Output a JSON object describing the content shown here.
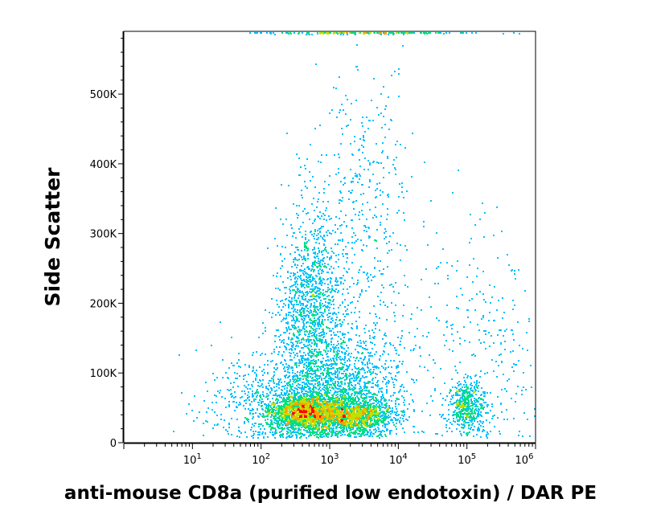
{
  "chart_data": {
    "type": "scatter",
    "subtype": "flow-cytometry density dot plot",
    "xlabel": "anti-mouse CD8a (purified low endotoxin) / DAR PE",
    "ylabel": "Side Scatter",
    "x_scale": "log",
    "xlim": [
      1,
      1000000
    ],
    "ylim": [
      0,
      590000
    ],
    "y_ticks": [
      {
        "value": 0,
        "label": "0"
      },
      {
        "value": 100000,
        "label": "100K"
      },
      {
        "value": 200000,
        "label": "200K"
      },
      {
        "value": 300000,
        "label": "300K"
      },
      {
        "value": 400000,
        "label": "400K"
      },
      {
        "value": 500000,
        "label": "500K"
      }
    ],
    "x_ticks": [
      {
        "value": 10,
        "base": "10",
        "exp": "1"
      },
      {
        "value": 100,
        "base": "10",
        "exp": "2"
      },
      {
        "value": 1000,
        "base": "10",
        "exp": "3"
      },
      {
        "value": 10000,
        "base": "10",
        "exp": "4"
      },
      {
        "value": 100000,
        "base": "10",
        "exp": "5"
      },
      {
        "value": 1000000,
        "base": "10",
        "exp": "6"
      }
    ],
    "color_scale": [
      "#0000ff",
      "#00c0ff",
      "#00e080",
      "#c0e000",
      "#ffa000",
      "#ff0000"
    ],
    "populations": [
      {
        "x": 400,
        "y": 45000,
        "sx_log": 0.28,
        "sy": 14000,
        "n": 1600,
        "rho": 0
      },
      {
        "x": 2000,
        "y": 40000,
        "sx_log": 0.32,
        "sy": 13000,
        "n": 1500,
        "rho": 0
      },
      {
        "x": 500,
        "y": 190000,
        "sx_log": 0.22,
        "sy": 75000,
        "n": 1300,
        "rho": 0
      },
      {
        "x": 1500,
        "y": 80000,
        "sx_log": 0.45,
        "sy": 40000,
        "n": 1200,
        "rho": 0
      },
      {
        "x": 3000,
        "y": 300000,
        "sx_log": 0.35,
        "sy": 130000,
        "n": 500,
        "rho": 0
      },
      {
        "x": 100000,
        "y": 55000,
        "sx_log": 0.14,
        "sy": 18000,
        "n": 500,
        "rho": 0
      },
      {
        "x": 150000,
        "y": 140000,
        "sx_log": 0.5,
        "sy": 90000,
        "n": 300,
        "rho": 0
      },
      {
        "x": 200,
        "y": 60000,
        "sx_log": 0.55,
        "sy": 35000,
        "n": 700,
        "rho": 0
      },
      {
        "x": 3000,
        "y": 590000,
        "sx_log": 0.8,
        "sy": 1500,
        "n": 300,
        "rho": 0
      }
    ]
  }
}
